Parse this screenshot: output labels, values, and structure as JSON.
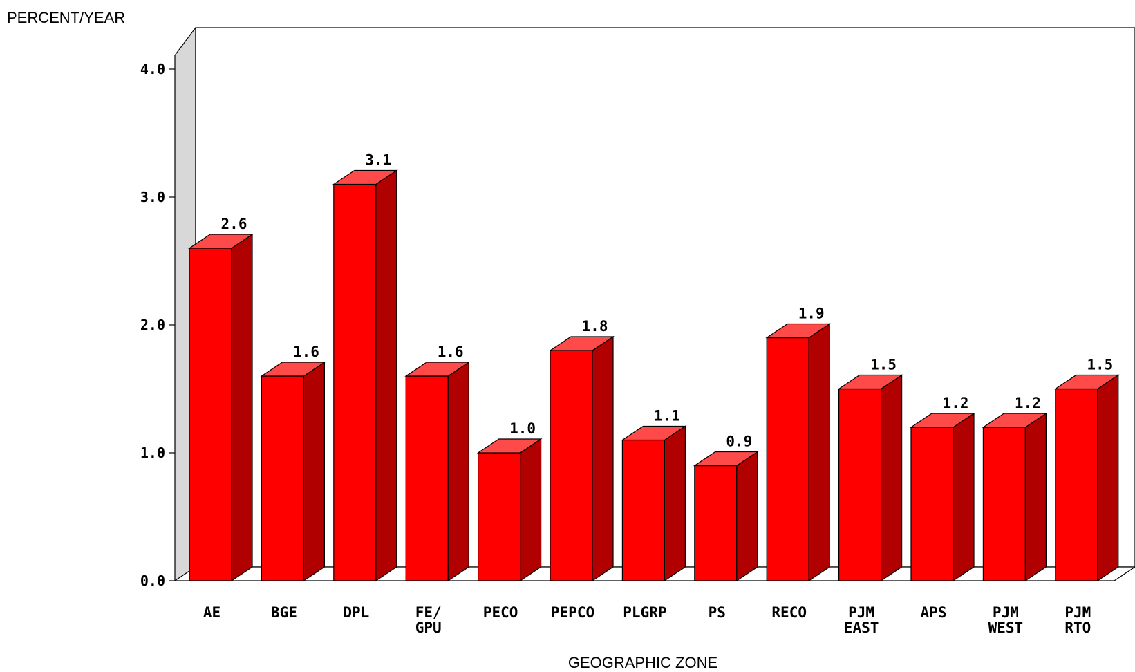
{
  "chart_data": {
    "type": "bar",
    "ylabel": "PERCENT/YEAR",
    "xlabel": "GEOGRAPHIC ZONE",
    "ylim": [
      0,
      4
    ],
    "yticks": [
      "0.0",
      "1.0",
      "2.0",
      "3.0",
      "4.0"
    ],
    "categories": [
      [
        "AE"
      ],
      [
        "BGE"
      ],
      [
        "DPL"
      ],
      [
        "FE/",
        "GPU"
      ],
      [
        "PECO"
      ],
      [
        "PEPCO"
      ],
      [
        "PLGRP"
      ],
      [
        "PS"
      ],
      [
        "RECO"
      ],
      [
        "PJM",
        "EAST"
      ],
      [
        "APS"
      ],
      [
        "PJM",
        "WEST"
      ],
      [
        "PJM",
        "RTO"
      ]
    ],
    "values": [
      2.6,
      1.6,
      3.1,
      1.6,
      1.0,
      1.8,
      1.1,
      0.9,
      1.9,
      1.5,
      1.2,
      1.2,
      1.5
    ],
    "value_labels": [
      "2.6",
      "1.6",
      "3.1",
      "1.6",
      "1.0",
      "1.8",
      "1.1",
      "0.9",
      "1.9",
      "1.5",
      "1.2",
      "1.2",
      "1.5"
    ],
    "grid": false,
    "colors": {
      "front": "#ff0000",
      "side": "#b00000",
      "top": "#ff4a4a",
      "wall": "#d8d8d8"
    }
  }
}
